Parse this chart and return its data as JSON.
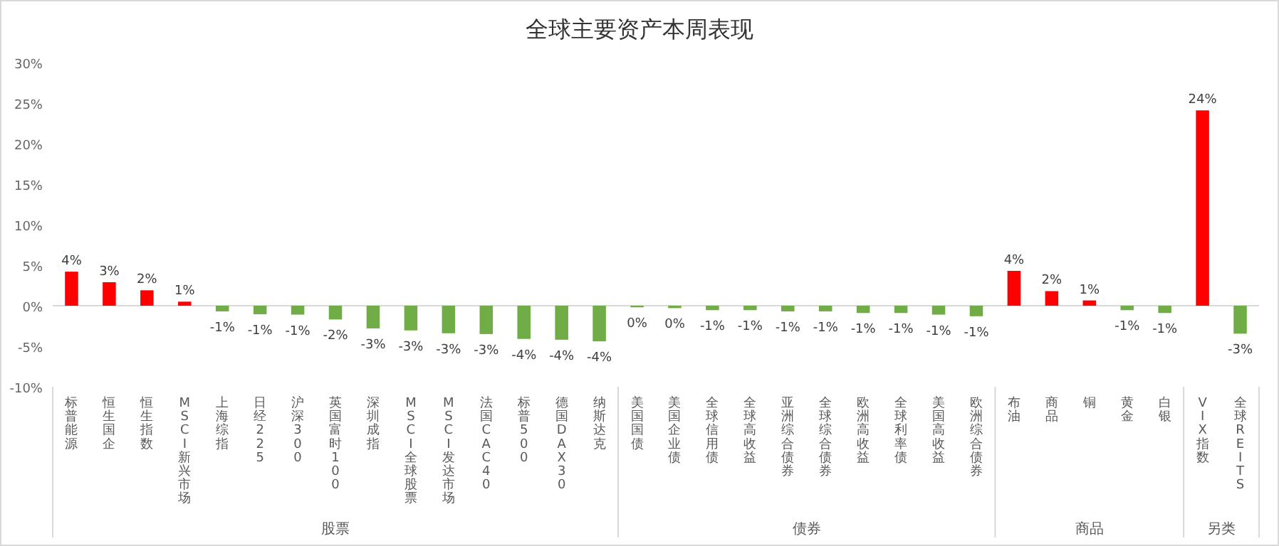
{
  "chart_data": {
    "type": "bar",
    "title": "全球主要资产本周表现",
    "categories": [
      "标普能源",
      "恒生国企",
      "恒生指数",
      "MSCI新兴市场",
      "上海综指",
      "日经225",
      "沪深300",
      "英国富时100",
      "深圳成指",
      "MSCI全球股票",
      "MSCI发达市场",
      "法国CAC40",
      "标普500",
      "德国DAX30",
      "纳斯达克",
      "美国国债",
      "美国企业债",
      "全球信用债",
      "全球高收益",
      "亚洲综合债券",
      "全球综合债券",
      "欧洲高收益",
      "全球利率债",
      "美国高收益",
      "欧洲综合债券",
      "布油",
      "商品",
      "铜",
      "黄金",
      "白银",
      "VIX指数",
      "全球REITS"
    ],
    "values": [
      4.2,
      2.9,
      1.9,
      0.5,
      -0.7,
      -1.05,
      -1.1,
      -1.7,
      -2.8,
      -3.05,
      -3.4,
      -3.5,
      -4.1,
      -4.2,
      -4.4,
      -0.2,
      -0.3,
      -0.55,
      -0.55,
      -0.7,
      -0.7,
      -0.9,
      -0.9,
      -1.1,
      -1.3,
      4.3,
      1.8,
      0.65,
      -0.55,
      -0.9,
      24.1,
      -3.45
    ],
    "value_labels": [
      "4%",
      "3%",
      "2%",
      "1%",
      "-1%",
      "-1%",
      "-1%",
      "-2%",
      "-3%",
      "-3%",
      "-3%",
      "-3%",
      "-4%",
      "-4%",
      "-4%",
      "0%",
      "0%",
      "-1%",
      "-1%",
      "-1%",
      "-1%",
      "-1%",
      "-1%",
      "-1%",
      "-1%",
      "4%",
      "2%",
      "1%",
      "-1%",
      "-1%",
      "24%",
      "-3%"
    ],
    "colors": [
      "#ff0000",
      "#ff0000",
      "#ff0000",
      "#ff0000",
      "#70ad47",
      "#70ad47",
      "#70ad47",
      "#70ad47",
      "#70ad47",
      "#70ad47",
      "#70ad47",
      "#70ad47",
      "#70ad47",
      "#70ad47",
      "#70ad47",
      "#70ad47",
      "#70ad47",
      "#70ad47",
      "#70ad47",
      "#70ad47",
      "#70ad47",
      "#70ad47",
      "#70ad47",
      "#70ad47",
      "#70ad47",
      "#ff0000",
      "#ff0000",
      "#ff0000",
      "#70ad47",
      "#70ad47",
      "#ff0000",
      "#70ad47"
    ],
    "ylim": [
      -10,
      30
    ],
    "yticks": [
      {
        "value": -10,
        "label": "-10%"
      },
      {
        "value": -5,
        "label": "-5%"
      },
      {
        "value": 0,
        "label": "0%"
      },
      {
        "value": 5,
        "label": "5%"
      },
      {
        "value": 10,
        "label": "10%"
      },
      {
        "value": 15,
        "label": "15%"
      },
      {
        "value": 20,
        "label": "20%"
      },
      {
        "value": 25,
        "label": "25%"
      },
      {
        "value": 30,
        "label": "30%"
      }
    ],
    "annotations": [
      "股票",
      "债券",
      "商品",
      "另类"
    ]
  }
}
